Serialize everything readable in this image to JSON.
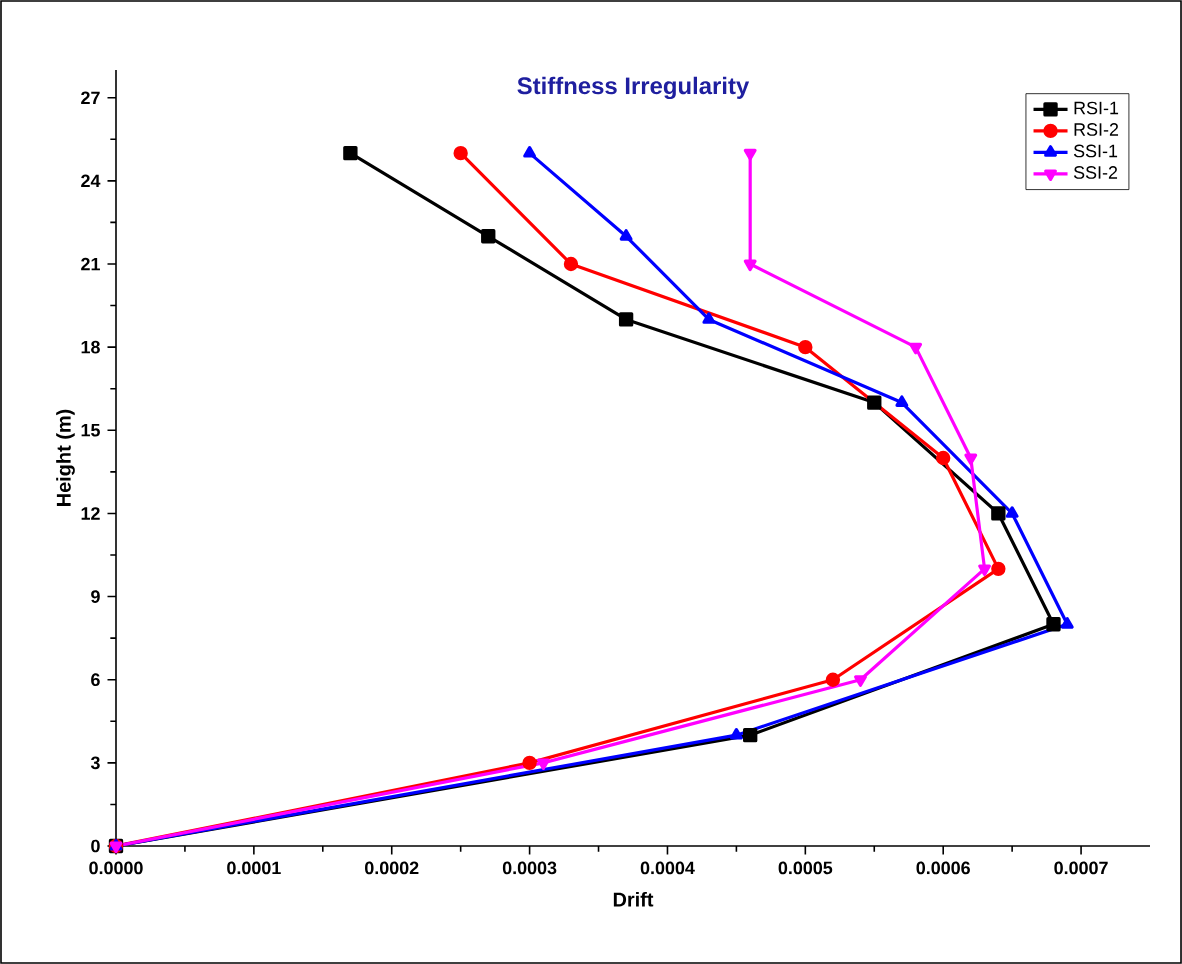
{
  "chart_data": {
    "type": "line",
    "title": "Stiffness Irregularity",
    "xlabel": "Drift",
    "ylabel": "Height (m)",
    "xlim": [
      0,
      0.00075
    ],
    "ylim": [
      0,
      28
    ],
    "xticks": [
      {
        "value": 0,
        "label": "0.0000"
      },
      {
        "value": 0.0001,
        "label": "0.0001"
      },
      {
        "value": 0.0002,
        "label": "0.0002"
      },
      {
        "value": 0.0003,
        "label": "0.0003"
      },
      {
        "value": 0.0004,
        "label": "0.0004"
      },
      {
        "value": 0.0005,
        "label": "0.0005"
      },
      {
        "value": 0.0006,
        "label": "0.0006"
      },
      {
        "value": 0.0007,
        "label": "0.0007"
      }
    ],
    "yticks": [
      0,
      3,
      6,
      9,
      12,
      15,
      18,
      21,
      24,
      27
    ],
    "grid": false,
    "legend": "top right",
    "line_style": "solid",
    "series": [
      {
        "name": "RSI-1",
        "color": "#000000",
        "marker": "square",
        "x": [
          0.00017,
          0.00027,
          0.00037,
          0.00055,
          0.00064,
          0.00068,
          0.00046,
          0
        ],
        "values": [
          25,
          22,
          19,
          16,
          12,
          8,
          4,
          0
        ]
      },
      {
        "name": "RSI-2",
        "color": "#ff0000",
        "marker": "circle",
        "x": [
          0.00025,
          0.00033,
          0.0005,
          0.0006,
          0.00064,
          0.00052,
          0.0003,
          0
        ],
        "values": [
          25,
          21,
          18,
          14,
          10,
          6,
          3,
          0
        ]
      },
      {
        "name": "SSI-1",
        "color": "#0000ff",
        "marker": "triangle",
        "x": [
          0.0003,
          0.00037,
          0.00043,
          0.00057,
          0.00065,
          0.00069,
          0.00045,
          0
        ],
        "values": [
          25,
          22,
          19,
          16,
          12,
          8,
          4,
          0
        ]
      },
      {
        "name": "SSI-2",
        "color": "#ff00ff",
        "marker": "triangle-down",
        "x": [
          0.00046,
          0.00046,
          0.00058,
          0.00062,
          0.00063,
          0.00054,
          0.00031,
          0
        ],
        "values": [
          25,
          21,
          18,
          14,
          10,
          6,
          3,
          0
        ]
      }
    ]
  }
}
